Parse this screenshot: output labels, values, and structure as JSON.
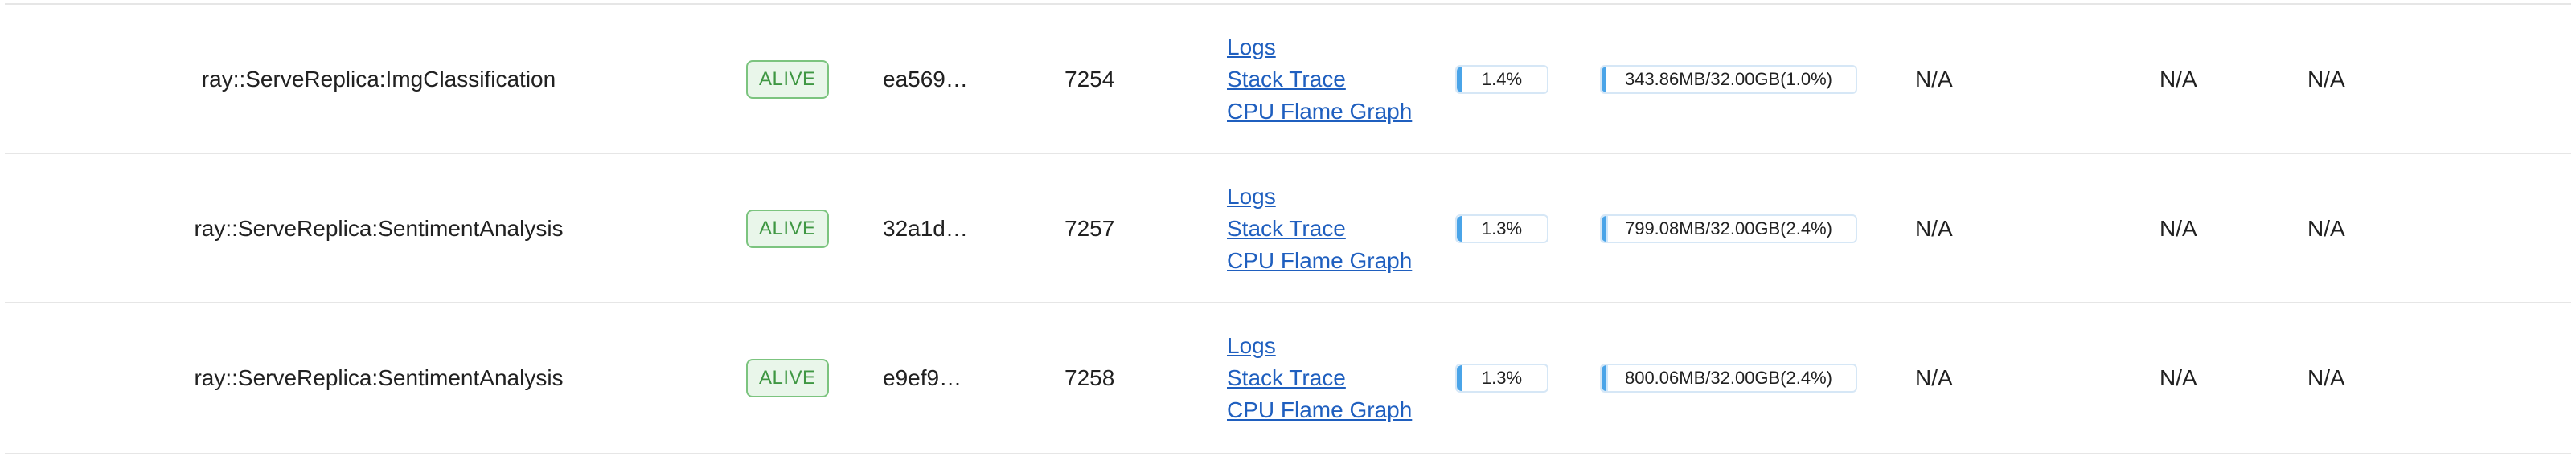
{
  "rows": [
    {
      "name": "ray::ServeReplica:ImgClassification",
      "state": "ALIVE",
      "id": "ea569…",
      "pid": "7254",
      "actions": [
        "Logs",
        "Stack Trace",
        "CPU Flame Graph"
      ],
      "cpu": {
        "text": "1.4%",
        "percent": 1.4
      },
      "mem": {
        "text": "343.86MB/32.00GB(1.0%)",
        "percent": 1.0
      },
      "gpu": "N/A",
      "gram": "N/A",
      "extra": "N/A"
    },
    {
      "name": "ray::ServeReplica:SentimentAnalysis",
      "state": "ALIVE",
      "id": "32a1d…",
      "pid": "7257",
      "actions": [
        "Logs",
        "Stack Trace",
        "CPU Flame Graph"
      ],
      "cpu": {
        "text": "1.3%",
        "percent": 1.3
      },
      "mem": {
        "text": "799.08MB/32.00GB(2.4%)",
        "percent": 2.4
      },
      "gpu": "N/A",
      "gram": "N/A",
      "extra": "N/A"
    },
    {
      "name": "ray::ServeReplica:SentimentAnalysis",
      "state": "ALIVE",
      "id": "e9ef9…",
      "pid": "7258",
      "actions": [
        "Logs",
        "Stack Trace",
        "CPU Flame Graph"
      ],
      "cpu": {
        "text": "1.3%",
        "percent": 1.3
      },
      "mem": {
        "text": "800.06MB/32.00GB(2.4%)",
        "percent": 2.4
      },
      "gpu": "N/A",
      "gram": "N/A",
      "extra": "N/A"
    }
  ],
  "colors": {
    "alive_text": "#3f9743",
    "alive_border": "#7cc47f",
    "alive_bg": "#e9f6ea",
    "link": "#1f5fbf",
    "meter_accent": "#4aa4e8"
  }
}
